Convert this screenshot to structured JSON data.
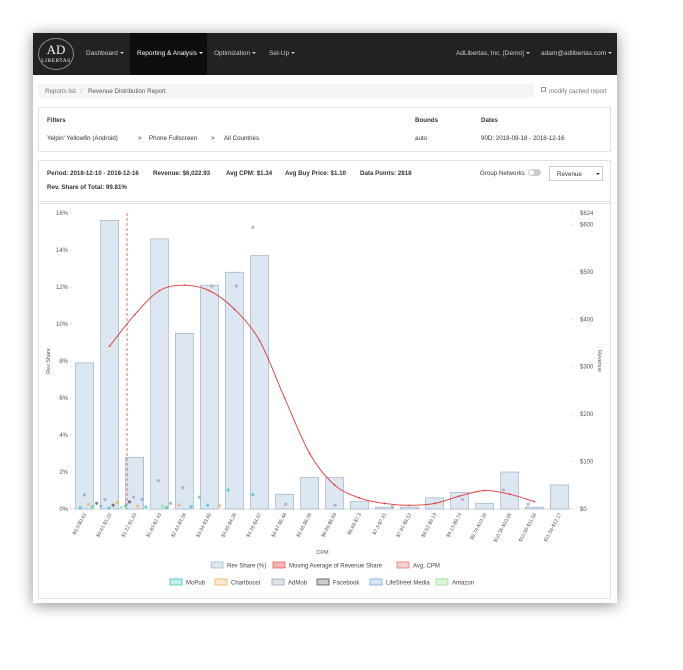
{
  "nav": {
    "logo_top": "AD",
    "logo_bottom": "LIBERTAS",
    "items": [
      "Dashboard",
      "Reporting & Analysis",
      "Optimization",
      "Set-Up"
    ],
    "account": "AdLibertas, Inc. [Demo]",
    "user": "adam@adlibertas.com"
  },
  "breadcrumb": {
    "items": [
      "Reports list",
      "Revenue Distribution Report"
    ],
    "separator": "/",
    "action": "modify cached report"
  },
  "filters": {
    "headers": [
      "Filters",
      "Bounds",
      "Dates"
    ],
    "path": [
      "Yelpin' Yellowfin (Android)",
      "Phone Fullscreen",
      "All Countries"
    ],
    "separator": ">",
    "bounds": "auto",
    "dates": "90D: 2018-09-18 - 2018-12-16"
  },
  "summary": {
    "items": [
      "Period: 2018-12-10 - 2018-12-16",
      "Revenue: $6,022.93",
      "Avg CPM: $1.34",
      "Avg Buy Price: $1.10",
      "Data Points: 2818"
    ],
    "share": "Rev. Share of Total: 99.81%",
    "toggle": "Group Networks",
    "select": "Revenue"
  },
  "chart_data": {
    "type": "bar",
    "categories": [
      "$0.0-$0.61",
      "$0.61-$1.22",
      "$1.22-$1.83",
      "$1.83-$2.43",
      "$2.43-$3.04",
      "$3.04-$3.65",
      "$3.65-$4.26",
      "$4.26-$4.87",
      "$4.87-$5.48",
      "$5.48-$6.09",
      "$6.09-$6.69",
      "$6.69-$7.3",
      "$7.3-$7.91",
      "$7.91-$8.52",
      "$8.52-$9.13",
      "$9.13-$9.74",
      "$9.74-$10.35",
      "$10.35-$10.95",
      "$10.95-$11.56",
      "$11.56-$12.17"
    ],
    "bins": [
      0,
      0.61,
      1.22,
      1.83,
      2.43,
      3.04,
      3.65,
      4.26,
      4.87,
      5.48,
      6.09,
      6.69,
      7.3,
      7.91,
      8.52,
      9.13,
      9.74,
      10.35,
      10.95,
      11.56,
      12.17
    ],
    "xlim": [
      0,
      12.17
    ],
    "series": [
      {
        "name": "Rev Share (%)",
        "color": "#dce7f1",
        "values": [
          7.9,
          15.6,
          2.8,
          14.6,
          9.5,
          12.1,
          12.8,
          13.7,
          0.8,
          1.7,
          1.7,
          0.4,
          0.1,
          0.1,
          0.6,
          0.9,
          0.3,
          2.0,
          0.1,
          1.3
        ]
      },
      {
        "name": "Moving Average of Revenue Share",
        "color": "#e03a3a",
        "values": [
          null,
          8.8,
          10.5,
          11.8,
          12.1,
          11.8,
          10.8,
          9.1,
          6.0,
          3.0,
          1.3,
          0.6,
          0.3,
          0.2,
          0.3,
          0.7,
          1.0,
          0.8,
          0.4,
          null
        ]
      }
    ],
    "avg_line": {
      "name": "Avg. CPM",
      "value": 1.34,
      "color": "#e05050"
    },
    "scatter": [
      {
        "name": "MoPub",
        "color": "#3cc6c6",
        "x": [
          0.2,
          0.5,
          0.9,
          1.3,
          1.8,
          2.3,
          2.9,
          3.3,
          3.8,
          4.4
        ],
        "y": [
          3,
          5,
          2,
          6,
          4,
          3,
          5,
          8,
          40,
          30
        ]
      },
      {
        "name": "Chartboost",
        "color": "#f0b060",
        "x": [
          0.4,
          1.1,
          1.6,
          2.6,
          3.6
        ],
        "y": [
          10,
          14,
          6,
          9,
          7
        ]
      },
      {
        "name": "AdMob",
        "color": "#9aa3bd",
        "x": [
          0.3,
          0.8,
          1.5,
          2.1,
          2.7,
          3.4,
          4.0,
          4.4,
          5.2,
          6.4,
          7.8,
          9.5,
          10.5,
          11.1
        ],
        "y": [
          30,
          20,
          25,
          60,
          45,
          470,
          470,
          594,
          10,
          8,
          5,
          20,
          40,
          10
        ]
      },
      {
        "name": "Facebook",
        "color": "#555555",
        "x": [
          0.6,
          1.0,
          1.4
        ],
        "y": [
          12,
          8,
          15
        ]
      },
      {
        "name": "LifeStreet Media",
        "color": "#7aa8dc",
        "x": [
          0.7,
          1.7,
          2.4,
          3.1
        ],
        "y": [
          6,
          20,
          12,
          25
        ]
      },
      {
        "name": "Amazon",
        "color": "#90e090",
        "x": [
          0.5,
          1.2,
          2.2
        ],
        "y": [
          4,
          3,
          6
        ]
      }
    ],
    "ylim": [
      0,
      16
    ],
    "yticks": [
      {
        "value": 0,
        "label": "0%"
      },
      {
        "value": 2,
        "label": "2%"
      },
      {
        "value": 4,
        "label": "4%"
      },
      {
        "value": 6,
        "label": "6%"
      },
      {
        "value": 8,
        "label": "8%"
      },
      {
        "value": 10,
        "label": "10%"
      },
      {
        "value": 12,
        "label": "12%"
      },
      {
        "value": 14,
        "label": "14%"
      },
      {
        "value": 16,
        "label": "16%"
      }
    ],
    "y2lim": [
      0,
      624
    ],
    "y2ticks": [
      {
        "value": 0,
        "label": "$0"
      },
      {
        "value": 100,
        "label": "$100"
      },
      {
        "value": 200,
        "label": "$200"
      },
      {
        "value": 300,
        "label": "$300"
      },
      {
        "value": 400,
        "label": "$400"
      },
      {
        "value": 500,
        "label": "$500"
      },
      {
        "value": 600,
        "label": "$600"
      },
      {
        "value": 624,
        "label": "$624"
      }
    ],
    "xlabel": "CPM",
    "ylabel": "Rev Share",
    "y2label": "Revenue"
  }
}
